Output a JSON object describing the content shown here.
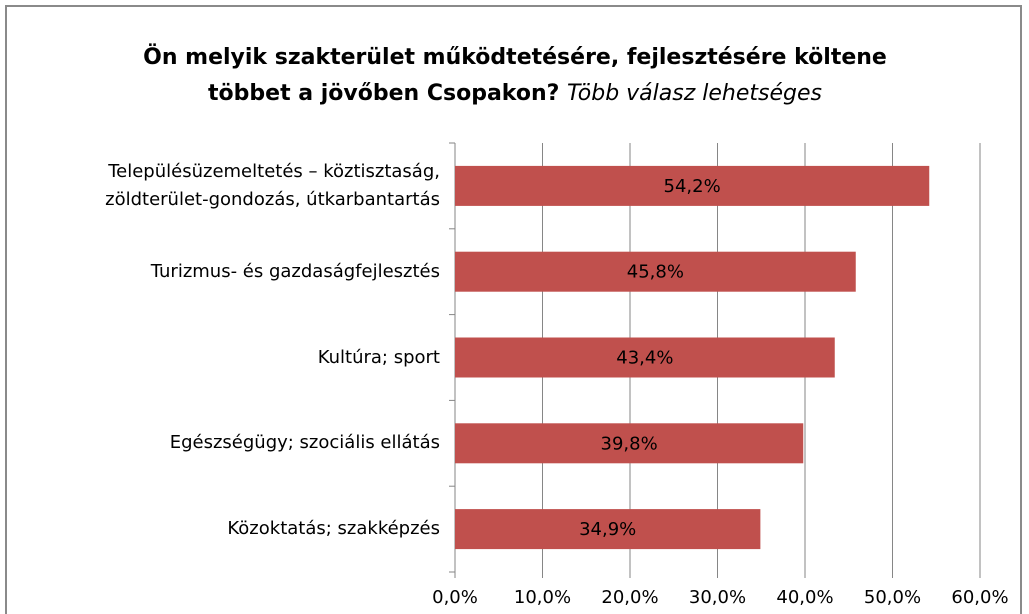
{
  "chart_data": {
    "type": "barh",
    "title": "Ön melyik szakterület működtetésére, fejlesztésére költene többet a jövőben Csopakon?",
    "subtitle": "Több válasz lehetséges",
    "categories": [
      "Településüzemeltetés – köztisztaság, zöldterület-gondozás, útkarbantartás",
      "Turizmus- és gazdaságfejlesztés",
      "Kultúra; sport",
      "Egészségügy; szociális ellátás",
      "Közoktatás; szakképzés"
    ],
    "values": [
      54.2,
      45.8,
      43.4,
      39.8,
      34.9
    ],
    "value_labels": [
      "54,2%",
      "45,8%",
      "43,4%",
      "39,8%",
      "34,9%"
    ],
    "color": "#c0504d",
    "xlim": [
      0,
      60
    ],
    "xticks": [
      {
        "value": 0,
        "label": "0,0%"
      },
      {
        "value": 10,
        "label": "10,0%"
      },
      {
        "value": 20,
        "label": "20,0%"
      },
      {
        "value": 30,
        "label": "30,0%"
      },
      {
        "value": 40,
        "label": "40,0%"
      },
      {
        "value": 50,
        "label": "50,0%"
      },
      {
        "value": 60,
        "label": "60,0%"
      }
    ],
    "grid": true
  }
}
